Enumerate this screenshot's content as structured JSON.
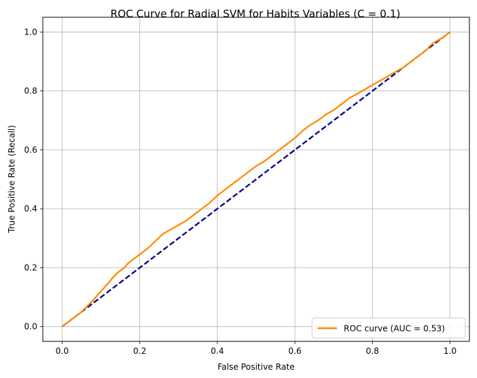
{
  "chart_data": {
    "type": "line",
    "title": "ROC Curve for Radial SVM for Habits Variables (C = 0.1)",
    "xlabel": "False Positive Rate",
    "ylabel": "True Positive Rate (Recall)",
    "xlim": [
      -0.05,
      1.05
    ],
    "ylim": [
      -0.05,
      1.05
    ],
    "xticks": [
      0.0,
      0.2,
      0.4,
      0.6,
      0.8,
      1.0
    ],
    "yticks": [
      0.0,
      0.2,
      0.4,
      0.6,
      0.8,
      1.0
    ],
    "xtick_labels": [
      "0.0",
      "0.2",
      "0.4",
      "0.6",
      "0.8",
      "1.0"
    ],
    "ytick_labels": [
      "0.0",
      "0.2",
      "0.4",
      "0.6",
      "0.8",
      "1.0"
    ],
    "grid": true,
    "legend_position": "lower-right",
    "series": [
      {
        "name": "ROC curve (AUC = 0.53)",
        "color": "#ff8c00",
        "style": "solid",
        "x": [
          0.0,
          0.02,
          0.05,
          0.08,
          0.1,
          0.12,
          0.14,
          0.16,
          0.17,
          0.18,
          0.2,
          0.22,
          0.24,
          0.26,
          0.28,
          0.3,
          0.32,
          0.34,
          0.36,
          0.38,
          0.4,
          0.42,
          0.44,
          0.46,
          0.48,
          0.5,
          0.52,
          0.54,
          0.56,
          0.58,
          0.6,
          0.62,
          0.64,
          0.66,
          0.68,
          0.7,
          0.72,
          0.74,
          0.76,
          0.78,
          0.8,
          0.82,
          0.84,
          0.86,
          0.88,
          0.9,
          0.92,
          0.94,
          0.95,
          0.96,
          0.98,
          1.0
        ],
        "y": [
          0.0,
          0.02,
          0.05,
          0.09,
          0.12,
          0.15,
          0.18,
          0.2,
          0.215,
          0.225,
          0.245,
          0.265,
          0.29,
          0.315,
          0.33,
          0.345,
          0.36,
          0.38,
          0.4,
          0.42,
          0.445,
          0.465,
          0.485,
          0.505,
          0.525,
          0.545,
          0.56,
          0.58,
          0.6,
          0.62,
          0.64,
          0.665,
          0.685,
          0.7,
          0.72,
          0.735,
          0.755,
          0.775,
          0.79,
          0.805,
          0.82,
          0.835,
          0.85,
          0.865,
          0.88,
          0.9,
          0.92,
          0.94,
          0.955,
          0.965,
          0.98,
          1.0
        ]
      },
      {
        "name": "",
        "color": "#000080",
        "style": "dashed",
        "x": [
          0.0,
          1.0
        ],
        "y": [
          0.0,
          1.0
        ]
      }
    ]
  }
}
